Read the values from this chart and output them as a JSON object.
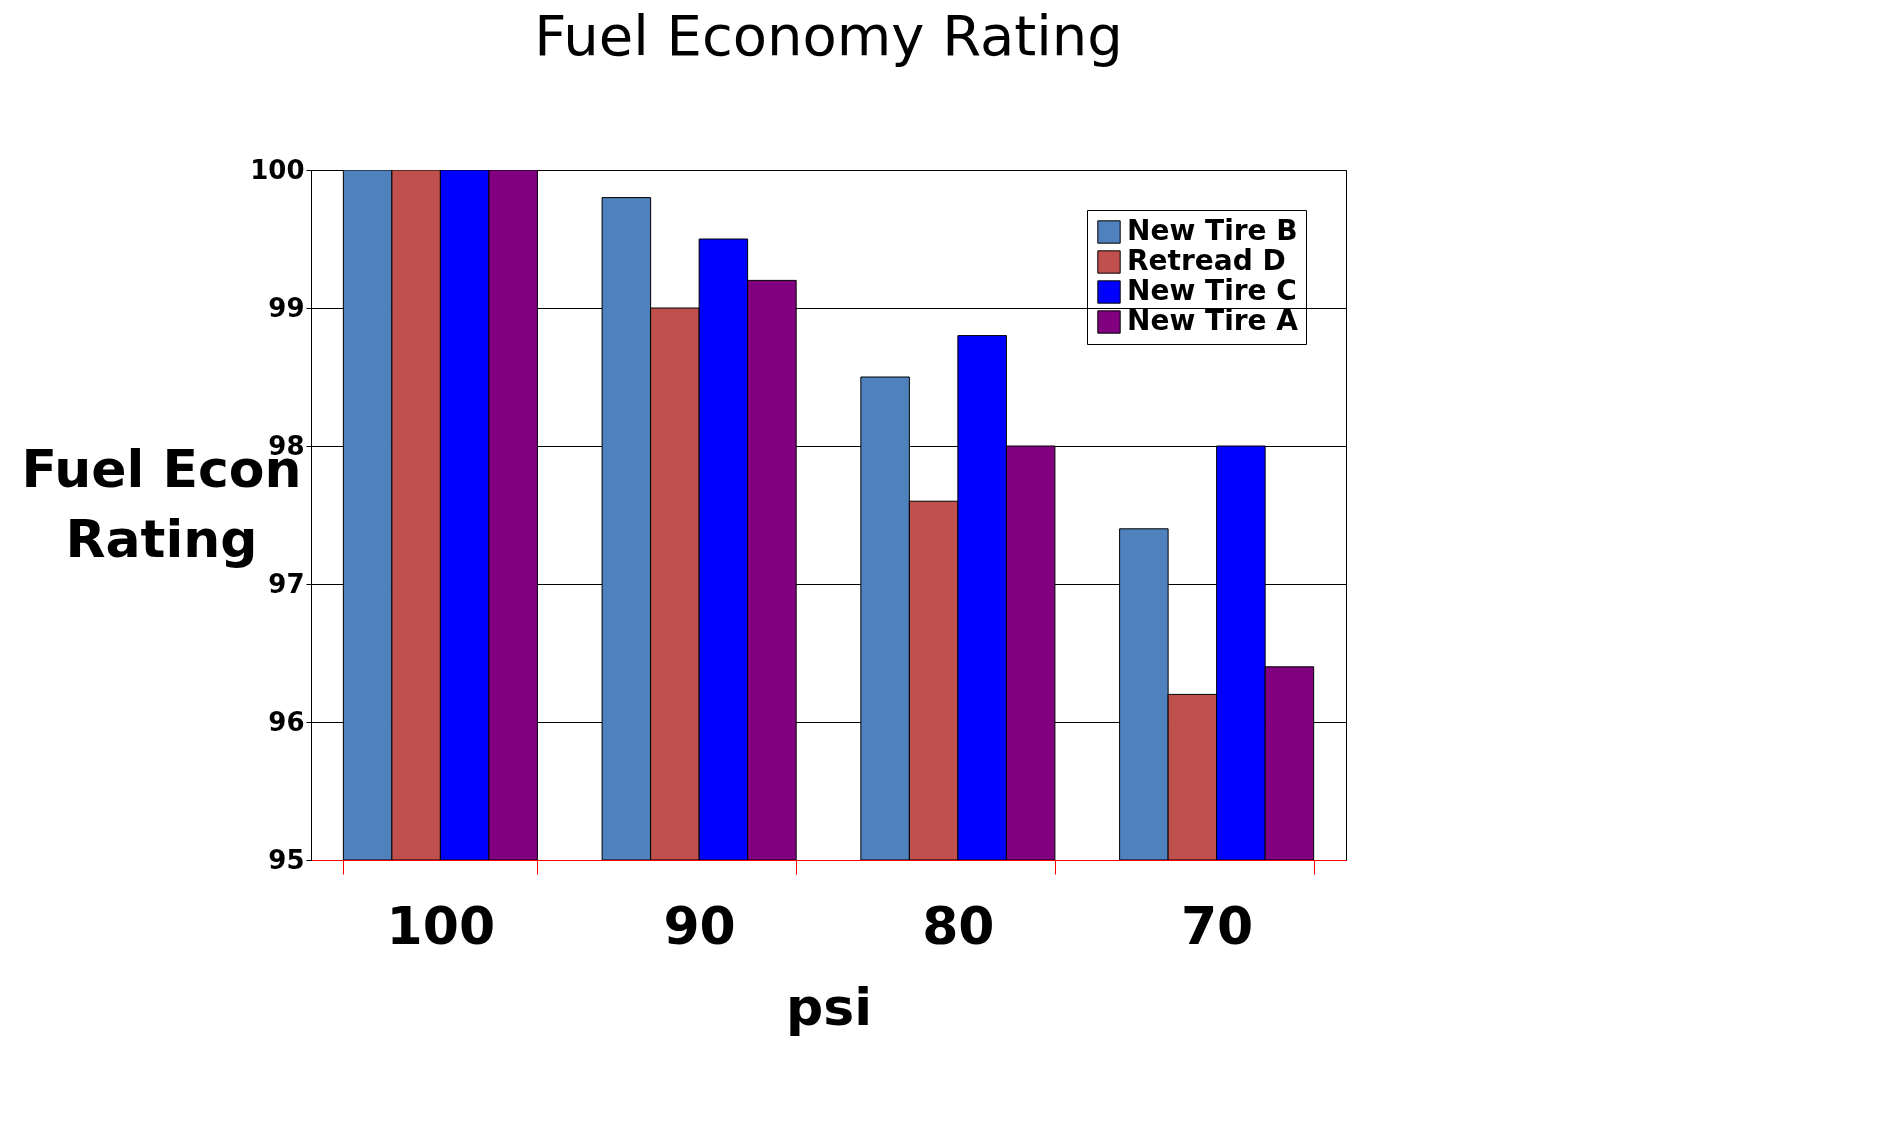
{
  "chart_data": {
    "type": "bar",
    "title": "Fuel Economy Rating",
    "xlabel": "psi",
    "ylabel": "Fuel Econ Rating",
    "categories": [
      "100",
      "90",
      "80",
      "70"
    ],
    "series": [
      {
        "name": "New Tire B",
        "color": "#4f81bd",
        "values": [
          100,
          99.8,
          98.5,
          97.4
        ]
      },
      {
        "name": "Retread D",
        "color": "#c0504d",
        "values": [
          100,
          99.0,
          97.6,
          96.2
        ]
      },
      {
        "name": "New Tire C",
        "color": "#0000ff",
        "values": [
          100,
          99.5,
          98.8,
          98.0
        ]
      },
      {
        "name": "New Tire A",
        "color": "#800080",
        "values": [
          100,
          99.2,
          98.0,
          96.4
        ]
      }
    ],
    "ylim": [
      95,
      100
    ],
    "yticks": [
      95,
      96,
      97,
      98,
      99,
      100
    ],
    "grid": "y",
    "legend": "top right"
  }
}
